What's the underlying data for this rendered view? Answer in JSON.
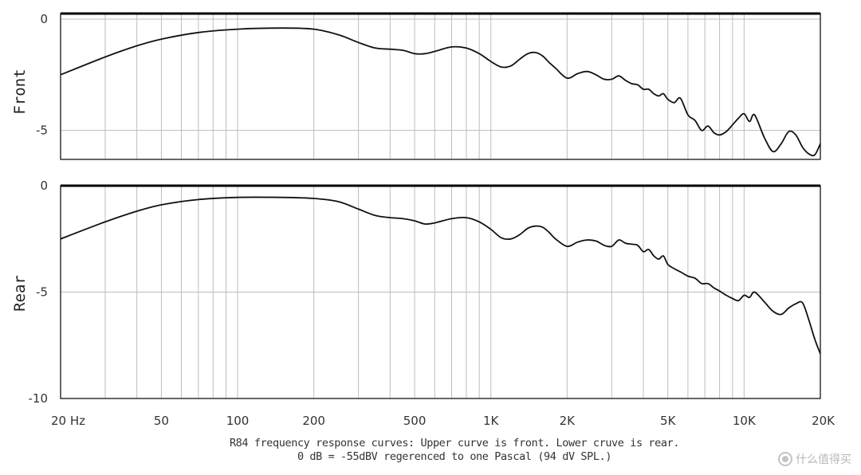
{
  "chart_data": [
    {
      "type": "line",
      "panel": "upper",
      "ylabel": "Front",
      "xscale": "log",
      "xlim": [
        20,
        20000
      ],
      "ylim": [
        -6.3,
        0
      ],
      "y_ticks": [
        0,
        -5
      ],
      "y_tick_labels": [
        "0",
        "-5"
      ],
      "grid": true,
      "series": [
        {
          "x": [
            20,
            30,
            40,
            50,
            70,
            100,
            150,
            200,
            250,
            300,
            350,
            400,
            450,
            500,
            550,
            600,
            700,
            800,
            900,
            1000,
            1100,
            1200,
            1300,
            1400,
            1500,
            1600,
            1700,
            1800,
            2000,
            2200,
            2400,
            2600,
            2800,
            3000,
            3200,
            3400,
            3600,
            3800,
            4000,
            4200,
            4400,
            4600,
            4800,
            5000,
            5300,
            5600,
            6000,
            6400,
            6800,
            7200,
            7600,
            8000,
            8500,
            9000,
            9500,
            10000,
            10500,
            11000,
            12000,
            13000,
            14000,
            15000,
            16000,
            17000,
            18000,
            19000,
            20000
          ],
          "y": [
            -2.5,
            -1.7,
            -1.2,
            -0.9,
            -0.6,
            -0.45,
            -0.4,
            -0.45,
            -0.7,
            -1.05,
            -1.3,
            -1.35,
            -1.4,
            -1.55,
            -1.55,
            -1.45,
            -1.25,
            -1.3,
            -1.55,
            -1.9,
            -2.15,
            -2.1,
            -1.8,
            -1.55,
            -1.5,
            -1.65,
            -1.95,
            -2.2,
            -2.65,
            -2.45,
            -2.35,
            -2.5,
            -2.7,
            -2.7,
            -2.55,
            -2.75,
            -2.9,
            -2.95,
            -3.15,
            -3.15,
            -3.35,
            -3.45,
            -3.35,
            -3.6,
            -3.75,
            -3.55,
            -4.3,
            -4.55,
            -5.0,
            -4.8,
            -5.1,
            -5.2,
            -5.05,
            -4.75,
            -4.45,
            -4.25,
            -4.6,
            -4.3,
            -5.3,
            -5.95,
            -5.6,
            -5.05,
            -5.2,
            -5.75,
            -6.05,
            -6.1,
            -5.6
          ]
        }
      ]
    },
    {
      "type": "line",
      "panel": "lower",
      "ylabel": "Rear",
      "xscale": "log",
      "xlim": [
        20,
        20000
      ],
      "ylim": [
        -10,
        0
      ],
      "y_ticks": [
        0,
        -5,
        -10
      ],
      "y_tick_labels": [
        "0",
        "-5",
        "-10"
      ],
      "x_ticks": [
        20,
        50,
        100,
        200,
        500,
        1000,
        2000,
        5000,
        10000,
        20000
      ],
      "x_tick_labels": [
        "20 Hz",
        "50",
        "100",
        "200",
        "500",
        "1K",
        "2K",
        "5K",
        "10K",
        "20K"
      ],
      "grid": true,
      "series": [
        {
          "x": [
            20,
            30,
            40,
            50,
            70,
            100,
            150,
            200,
            250,
            300,
            350,
            400,
            450,
            500,
            550,
            600,
            700,
            800,
            900,
            1000,
            1100,
            1200,
            1300,
            1400,
            1500,
            1600,
            1700,
            1800,
            2000,
            2200,
            2400,
            2600,
            2800,
            3000,
            3200,
            3400,
            3600,
            3800,
            4000,
            4200,
            4400,
            4600,
            4800,
            5000,
            5300,
            5600,
            6000,
            6400,
            6800,
            7200,
            7600,
            8000,
            8500,
            9000,
            9500,
            10000,
            10500,
            11000,
            12000,
            13000,
            14000,
            15000,
            16000,
            17000,
            18000,
            19000,
            20000
          ],
          "y": [
            -2.5,
            -1.7,
            -1.2,
            -0.9,
            -0.65,
            -0.55,
            -0.55,
            -0.6,
            -0.75,
            -1.1,
            -1.4,
            -1.5,
            -1.55,
            -1.65,
            -1.8,
            -1.75,
            -1.55,
            -1.5,
            -1.7,
            -2.05,
            -2.45,
            -2.5,
            -2.3,
            -2.0,
            -1.9,
            -1.95,
            -2.2,
            -2.5,
            -2.85,
            -2.65,
            -2.55,
            -2.6,
            -2.8,
            -2.85,
            -2.55,
            -2.7,
            -2.75,
            -2.8,
            -3.1,
            -3.0,
            -3.3,
            -3.45,
            -3.3,
            -3.7,
            -3.9,
            -4.05,
            -4.25,
            -4.35,
            -4.6,
            -4.6,
            -4.8,
            -4.95,
            -5.15,
            -5.3,
            -5.4,
            -5.15,
            -5.25,
            -5.0,
            -5.45,
            -5.9,
            -6.05,
            -5.75,
            -5.55,
            -5.5,
            -6.3,
            -7.2,
            -7.9
          ]
        }
      ]
    }
  ],
  "caption": {
    "line1": "R84 frequency response curves: Upper curve is front. Lower cruve is rear.",
    "line2": "0 dB = -55dBV regerenced to one Pascal (94 dV SPL.)"
  },
  "watermark": {
    "text": "什么值得买",
    "icon": "smzdm-logo-icon"
  },
  "colors": {
    "curve": "#111111",
    "grid": "#bdbdbd",
    "frame": "#000000"
  }
}
